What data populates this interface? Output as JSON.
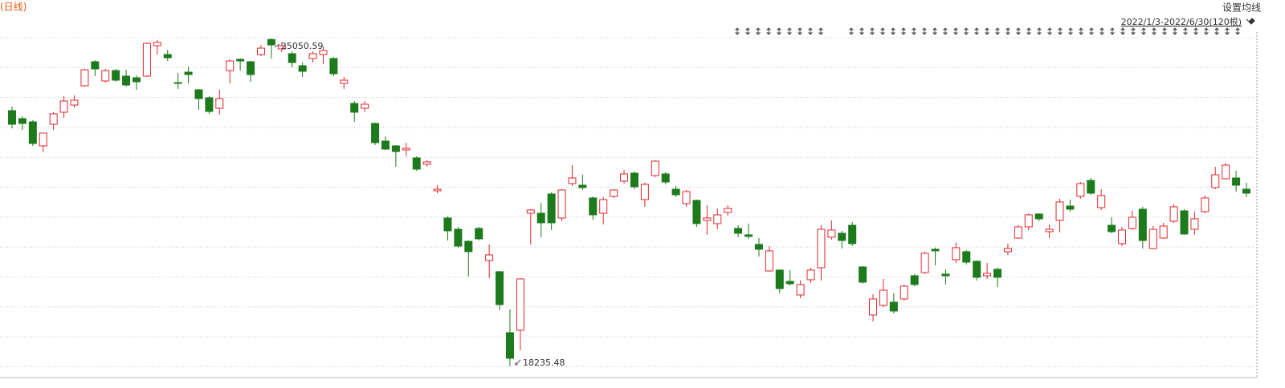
{
  "toolbar": {
    "period_label": "(日线)",
    "ma_button": "设置均线",
    "range_label": "2022/1/3-2022/6/30(120根)"
  },
  "chart_data": {
    "type": "candlestick",
    "up_color": "#e0282e",
    "down_color": "#1d7a1d",
    "high_label": "25050.59",
    "low_label": "18235.48",
    "open": [
      23551,
      23385,
      23318,
      22818,
      23268,
      23518,
      23667,
      24067,
      24567,
      24167,
      24384,
      24268,
      24234,
      24268,
      24900,
      24717,
      24134,
      24351,
      23984,
      23818,
      23601,
      24384,
      24617,
      24567,
      24717,
      25030,
      24834,
      24734,
      24484,
      24634,
      24717,
      24634,
      24117,
      23701,
      23601,
      23284,
      22918,
      22818,
      22734,
      22568,
      22435,
      21885,
      21319,
      21085,
      20835,
      21102,
      20436,
      20203,
      18936,
      18986,
      21418,
      21418,
      21818,
      21319,
      22035,
      22001,
      21735,
      21418,
      21768,
      22085,
      22251,
      21702,
      22201,
      22235,
      21918,
      21618,
      21685,
      21268,
      21202,
      21435,
      21102,
      20969,
      20769,
      20219,
      20236,
      20002,
      19719,
      20036,
      20286,
      20919,
      21002,
      21168,
      20302,
      19303,
      19503,
      19569,
      19636,
      20119,
      20186,
      20669,
      20153,
      20452,
      20619,
      20419,
      20119,
      20252,
      20619,
      20902,
      21135,
      21402,
      21035,
      21268,
      21568,
      21768,
      22101,
      21535,
      21168,
      20786,
      21102,
      21502,
      20685,
      20902,
      21252,
      21468,
      21085,
      21452,
      21952,
      22135,
      22151,
      21918
    ],
    "high": [
      23634,
      23434,
      23351,
      23085,
      23518,
      23851,
      23868,
      24418,
      24600,
      24418,
      24418,
      24401,
      24284,
      24967,
      25017,
      24817,
      24334,
      24467,
      24001,
      23851,
      23984,
      24617,
      24634,
      24584,
      24917,
      25050.59,
      24967,
      24784,
      24551,
      24784,
      24884,
      24667,
      24251,
      23751,
      23751,
      23301,
      23018,
      22834,
      22885,
      22601,
      22518,
      22001,
      21352,
      21135,
      20852,
      21135,
      20769,
      20219,
      19419,
      20069,
      21502,
      21635,
      21852,
      21918,
      22418,
      22218,
      21768,
      21752,
      21918,
      22318,
      22285,
      22051,
      22518,
      22268,
      21985,
      21902,
      21702,
      21585,
      21518,
      21585,
      21168,
      21202,
      20902,
      20735,
      20252,
      20236,
      20019,
      20286,
      21168,
      21268,
      21052,
      21235,
      20319,
      19736,
      20053,
      19752,
      19936,
      20153,
      20619,
      20702,
      20252,
      20802,
      20652,
      20436,
      20386,
      20286,
      20786,
      21168,
      21418,
      21418,
      21185,
      21718,
      21702,
      22068,
      22151,
      21918,
      21335,
      21135,
      21468,
      21552,
      21152,
      21218,
      21602,
      21502,
      21452,
      21785,
      22385,
      22468,
      22301,
      22051
    ],
    "low": [
      23184,
      23151,
      22818,
      22685,
      23151,
      23401,
      23617,
      24051,
      24268,
      24134,
      24150,
      24051,
      23984,
      24251,
      24717,
      24584,
      24001,
      24117,
      23567,
      23485,
      23468,
      24117,
      24384,
      24150,
      24684,
      24634,
      24767,
      24451,
      24251,
      24551,
      24517,
      24268,
      24001,
      23318,
      23518,
      22834,
      22734,
      22385,
      22601,
      22301,
      22385,
      21835,
      20852,
      20702,
      20102,
      20852,
      20069,
      19403,
      18235.48,
      18570,
      20769,
      20919,
      21069,
      21252,
      21985,
      21902,
      21285,
      21185,
      21735,
      22035,
      21918,
      21552,
      22168,
      22018,
      21752,
      21552,
      21135,
      20969,
      21085,
      21368,
      20919,
      20886,
      20519,
      20203,
      19752,
      19919,
      19652,
      19969,
      20019,
      20869,
      20685,
      20735,
      19952,
      19169,
      19469,
      19336,
      19603,
      19902,
      20153,
      20336,
      19936,
      20386,
      20352,
      20019,
      20053,
      19886,
      20552,
      20886,
      21069,
      21252,
      20902,
      21019,
      21452,
      21718,
      21802,
      21485,
      21002,
      20735,
      21069,
      20685,
      20669,
      20886,
      21218,
      20969,
      20969,
      21418,
      21918,
      22118,
      21868,
      21752
    ],
    "close": [
      23268,
      23284,
      22868,
      23085,
      23485,
      23751,
      23768,
      24401,
      24418,
      24384,
      24184,
      24084,
      24150,
      24950,
      24967,
      24650,
      24117,
      24301,
      23801,
      23534,
      23801,
      24584,
      24584,
      24301,
      24850,
      24917,
      24900,
      24551,
      24368,
      24734,
      24800,
      24318,
      24184,
      23518,
      23684,
      22885,
      22751,
      22701,
      22768,
      22335,
      22485,
      21918,
      21052,
      20735,
      20619,
      20886,
      20552,
      19519,
      18403,
      20053,
      21485,
      21219,
      21219,
      21902,
      22151,
      21951,
      21385,
      21702,
      21902,
      22235,
      21968,
      22018,
      22501,
      22068,
      21802,
      21868,
      21202,
      21319,
      21385,
      21518,
      21002,
      20936,
      20669,
      20636,
      19852,
      19952,
      19936,
      20236,
      21085,
      21069,
      20852,
      20786,
      19986,
      19636,
      19819,
      19386,
      19902,
      19936,
      20586,
      20636,
      20119,
      20702,
      20402,
      20086,
      20169,
      20086,
      20685,
      21135,
      21385,
      21302,
      21085,
      21652,
      21502,
      22035,
      21835,
      21785,
      21035,
      21069,
      21335,
      20852,
      21085,
      21152,
      21552,
      20986,
      21302,
      21735,
      22218,
      22418,
      22001,
      21835
    ]
  }
}
